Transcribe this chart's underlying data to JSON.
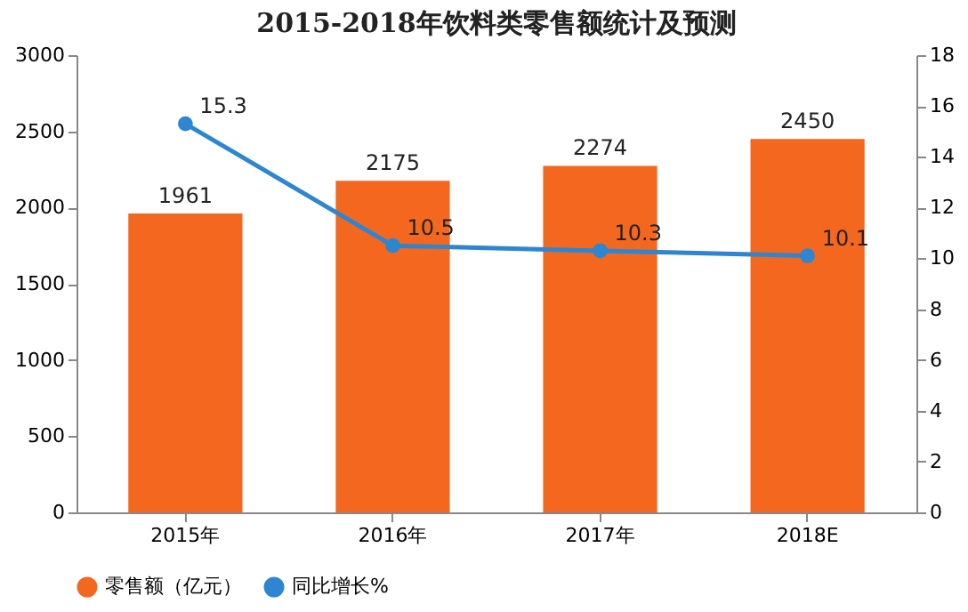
{
  "chart_data": {
    "type": "bar",
    "title": "2015-2018年饮料类零售额统计及预测",
    "categories": [
      "2015年",
      "2016年",
      "2017年",
      "2018E"
    ],
    "series": [
      {
        "name": "零售额（亿元）",
        "color": "#f4671f",
        "values": [
          1961,
          2175,
          2274,
          2450
        ]
      },
      {
        "name": "同比增长%",
        "type": "line",
        "axis": "y2",
        "color": "#2e86d1",
        "values": [
          15.3,
          10.5,
          10.3,
          10.1
        ]
      }
    ],
    "ylim": [
      0,
      3000
    ],
    "yticks": [
      0,
      500,
      1000,
      1500,
      2000,
      2500,
      3000
    ],
    "y2lim": [
      0,
      18
    ],
    "y2ticks": [
      0,
      2,
      4,
      6,
      8,
      10,
      12,
      14,
      16,
      18
    ],
    "data_labels": true,
    "legend": "bottom",
    "marker": "circle",
    "grid": false
  }
}
